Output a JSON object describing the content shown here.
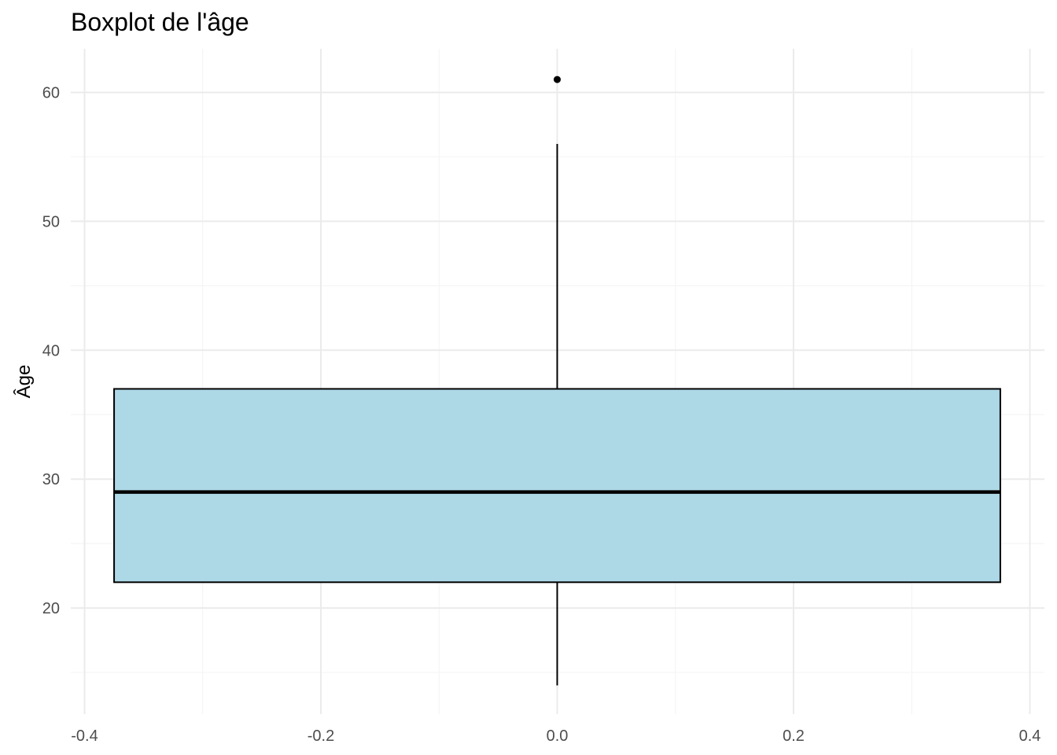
{
  "chart_data": {
    "type": "boxplot",
    "title": "Boxplot de l'âge",
    "xlabel": "",
    "ylabel": "Âge",
    "xlim": [
      -0.4,
      0.4
    ],
    "ylim": [
      12,
      63
    ],
    "x_ticks": [
      -0.4,
      -0.2,
      0.0,
      0.2,
      0.4
    ],
    "x_tick_labels": [
      "-0.4",
      "-0.2",
      "0.0",
      "0.2",
      "0.4"
    ],
    "y_ticks": [
      20,
      30,
      40,
      50,
      60
    ],
    "y_tick_labels": [
      "20",
      "30",
      "40",
      "50",
      "60"
    ],
    "grid": true,
    "box": {
      "x_center": 0.0,
      "x_left": -0.375,
      "x_right": 0.375,
      "lower_whisker": 14,
      "q1": 22,
      "median": 29,
      "q3": 37,
      "upper_whisker": 56,
      "outliers": [
        61
      ]
    },
    "colors": {
      "box_fill": "#add8e6",
      "box_stroke": "#000000",
      "grid_major": "#ebebeb",
      "grid_minor": "#f5f5f5",
      "tick_text": "#4d4d4d"
    }
  }
}
